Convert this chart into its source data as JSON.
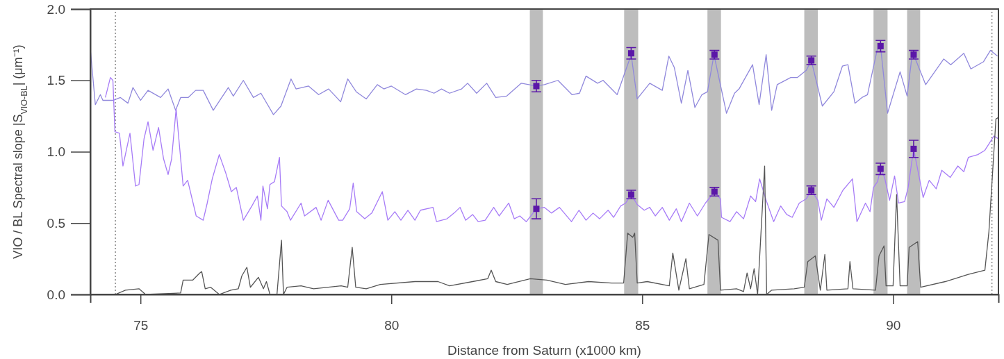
{
  "chart_data": {
    "type": "line",
    "xlabel": "Distance from Saturn (x1000 km)",
    "ylabel": "VIO / BL Spectral slope |S$_{VIO-BL}$| (μm⁻¹)",
    "xlim": [
      74,
      92.1
    ],
    "ylim": [
      0,
      2
    ],
    "xticks": [
      75,
      80,
      85,
      90
    ],
    "yticks": [
      {
        "value": 0,
        "label": "0.0"
      },
      {
        "value": 0.5,
        "label": "0.5"
      },
      {
        "value": 1,
        "label": "1.0"
      },
      {
        "value": 1.5,
        "label": "1.5"
      },
      {
        "value": 2,
        "label": "2.0"
      }
    ],
    "grid": false,
    "bands": [
      {
        "axis": "x",
        "from": 82.76,
        "to": 83.02,
        "color": "#bdbdbd"
      },
      {
        "axis": "x",
        "from": 84.64,
        "to": 84.92,
        "color": "#bdbdbd"
      },
      {
        "axis": "x",
        "from": 86.3,
        "to": 86.57,
        "color": "#bdbdbd"
      },
      {
        "axis": "x",
        "from": 88.23,
        "to": 88.5,
        "color": "#bdbdbd"
      },
      {
        "axis": "x",
        "from": 89.61,
        "to": 89.89,
        "color": "#bdbdbd"
      },
      {
        "axis": "x",
        "from": 90.28,
        "to": 90.54,
        "color": "#bdbdbd"
      }
    ],
    "ref_lines": [
      {
        "axis": "x",
        "value": 74.5,
        "color": "#888888",
        "line_style": "dotted"
      },
      {
        "axis": "x",
        "value": 91.97,
        "color": "#888888",
        "line_style": "dotted"
      }
    ],
    "series": [
      {
        "color": "#9088dc",
        "x": [
          74.0,
          74.1,
          74.2,
          74.25,
          74.45,
          74.6,
          74.75,
          74.85,
          75.0,
          75.15,
          75.4,
          75.55,
          75.7,
          75.8,
          75.95,
          76.1,
          76.25,
          76.45,
          76.75,
          76.85,
          77.05,
          77.25,
          77.4,
          77.65,
          77.8,
          78.0,
          78.1,
          78.35,
          78.55,
          78.75,
          78.99,
          79.13,
          79.3,
          79.5,
          79.72,
          79.85,
          80.0,
          80.28,
          80.5,
          80.7,
          80.85,
          81.0,
          81.16,
          81.4,
          81.52,
          81.7,
          81.9,
          82.08,
          82.3,
          82.59,
          82.89,
          83.05,
          83.32,
          83.6,
          83.75,
          83.88,
          84.11,
          84.22,
          84.5,
          84.78,
          84.9,
          85.15,
          85.4,
          85.53,
          85.64,
          85.78,
          85.91,
          86.05,
          86.19,
          86.3,
          86.43,
          86.68,
          86.84,
          86.93,
          87.2,
          87.33,
          87.47,
          87.58,
          87.69,
          87.96,
          88.09,
          88.27,
          88.37,
          88.59,
          88.82,
          88.99,
          89.1,
          89.24,
          89.38,
          89.49,
          89.68,
          89.75,
          89.89,
          90.14,
          90.28,
          90.37,
          90.41,
          90.65,
          91.01,
          91.15,
          91.41,
          91.55,
          91.8,
          91.94,
          92.08
        ],
        "values": [
          1.72,
          1.33,
          1.4,
          1.36,
          1.36,
          1.38,
          1.34,
          1.45,
          1.36,
          1.43,
          1.38,
          1.44,
          1.29,
          1.38,
          1.38,
          1.43,
          1.43,
          1.29,
          1.45,
          1.39,
          1.5,
          1.38,
          1.41,
          1.26,
          1.32,
          1.51,
          1.44,
          1.46,
          1.4,
          1.44,
          1.35,
          1.51,
          1.42,
          1.37,
          1.47,
          1.44,
          1.46,
          1.4,
          1.44,
          1.43,
          1.41,
          1.44,
          1.41,
          1.44,
          1.48,
          1.41,
          1.48,
          1.38,
          1.39,
          1.48,
          1.46,
          1.47,
          1.5,
          1.4,
          1.41,
          1.53,
          1.48,
          1.5,
          1.4,
          1.68,
          1.37,
          1.48,
          1.43,
          1.67,
          1.59,
          1.34,
          1.57,
          1.31,
          1.4,
          1.42,
          1.68,
          1.27,
          1.41,
          1.44,
          1.61,
          1.33,
          1.68,
          1.29,
          1.47,
          1.52,
          1.52,
          1.57,
          1.64,
          1.32,
          1.42,
          1.6,
          1.61,
          1.34,
          1.38,
          1.4,
          1.71,
          1.74,
          1.27,
          1.56,
          1.39,
          1.65,
          1.68,
          1.47,
          1.65,
          1.61,
          1.69,
          1.58,
          1.63,
          1.71,
          1.67
        ]
      },
      {
        "color": "#a77cf7",
        "x": [
          74.3,
          74.4,
          74.45,
          74.49,
          74.58,
          74.65,
          74.79,
          74.9,
          74.97,
          75.07,
          75.15,
          75.25,
          75.36,
          75.46,
          75.55,
          75.62,
          75.71,
          75.85,
          75.94,
          76.11,
          76.25,
          76.33,
          76.43,
          76.57,
          76.7,
          76.81,
          76.91,
          77.05,
          77.22,
          77.33,
          77.4,
          77.44,
          77.53,
          77.58,
          77.67,
          77.77,
          77.81,
          77.92,
          77.99,
          78.2,
          78.27,
          78.5,
          78.6,
          78.74,
          78.95,
          79.03,
          79.17,
          79.24,
          79.31,
          79.47,
          79.61,
          79.82,
          79.93,
          80.07,
          80.19,
          80.33,
          80.47,
          80.58,
          80.83,
          80.9,
          81.11,
          81.25,
          81.37,
          81.48,
          81.62,
          81.73,
          81.87,
          82.04,
          82.15,
          82.34,
          82.45,
          82.56,
          82.69,
          82.89,
          83.05,
          83.19,
          83.35,
          83.59,
          83.74,
          83.88,
          84.02,
          84.15,
          84.32,
          84.43,
          84.57,
          84.67,
          84.78,
          84.9,
          85.04,
          85.15,
          85.26,
          85.4,
          85.54,
          85.68,
          85.78,
          85.94,
          86.1,
          86.26,
          86.44,
          86.56,
          86.58,
          86.75,
          86.88,
          87.02,
          87.16,
          87.26,
          87.34,
          87.47,
          87.62,
          87.76,
          87.88,
          87.99,
          88.13,
          88.27,
          88.37,
          88.5,
          88.57,
          88.68,
          88.82,
          89.0,
          89.19,
          89.28,
          89.45,
          89.54,
          89.61,
          89.69,
          89.75,
          89.83,
          89.93,
          90.03,
          90.11,
          90.23,
          90.3,
          90.41,
          90.46,
          90.6,
          90.72,
          90.86,
          90.97,
          91.14,
          91.29,
          91.41,
          91.5,
          91.69,
          91.83,
          92.01,
          92.1
        ],
        "values": [
          1.38,
          1.52,
          1.5,
          1.14,
          1.13,
          0.9,
          1.13,
          0.76,
          0.77,
          1.09,
          1.21,
          1.01,
          1.17,
          0.95,
          0.84,
          0.95,
          1.3,
          0.76,
          0.8,
          0.55,
          0.52,
          0.64,
          0.81,
          0.98,
          0.85,
          0.72,
          0.75,
          0.52,
          0.62,
          0.69,
          0.52,
          0.76,
          0.6,
          0.77,
          0.79,
          0.96,
          0.62,
          0.58,
          0.52,
          0.64,
          0.55,
          0.61,
          0.52,
          0.66,
          0.52,
          0.52,
          0.6,
          0.78,
          0.58,
          0.53,
          0.57,
          0.72,
          0.52,
          0.58,
          0.52,
          0.59,
          0.52,
          0.59,
          0.61,
          0.51,
          0.53,
          0.57,
          0.61,
          0.52,
          0.56,
          0.51,
          0.52,
          0.61,
          0.55,
          0.64,
          0.53,
          0.55,
          0.51,
          0.6,
          0.61,
          0.57,
          0.61,
          0.51,
          0.59,
          0.52,
          0.57,
          0.53,
          0.59,
          0.54,
          0.62,
          0.64,
          0.7,
          0.63,
          0.59,
          0.61,
          0.55,
          0.61,
          0.52,
          0.6,
          0.51,
          0.64,
          0.55,
          0.64,
          0.72,
          0.67,
          0.54,
          0.51,
          0.58,
          0.53,
          0.69,
          0.65,
          0.81,
          0.66,
          0.51,
          0.62,
          0.56,
          0.54,
          0.64,
          0.67,
          0.73,
          0.66,
          0.52,
          0.67,
          0.61,
          0.73,
          0.81,
          0.51,
          0.64,
          0.58,
          0.75,
          0.79,
          0.88,
          0.82,
          0.66,
          0.83,
          0.64,
          0.65,
          0.75,
          1.02,
          0.93,
          0.68,
          0.8,
          0.74,
          0.87,
          0.82,
          0.9,
          0.86,
          0.96,
          0.98,
          1.01,
          1.11,
          1.09
        ]
      },
      {
        "color": "#555555",
        "x": [
          74.5,
          74.7,
          74.97,
          75.1,
          75.8,
          75.85,
          76.04,
          76.18,
          76.22,
          76.29,
          76.4,
          76.57,
          76.8,
          76.95,
          77.02,
          77.12,
          77.19,
          77.35,
          77.45,
          77.51,
          77.58,
          77.72,
          77.81,
          77.85,
          77.92,
          78.2,
          78.45,
          79.0,
          79.13,
          79.22,
          79.29,
          79.5,
          79.78,
          80.47,
          80.93,
          81.16,
          81.62,
          81.92,
          81.99,
          82.08,
          82.31,
          82.77,
          83.1,
          83.47,
          83.93,
          84.39,
          84.63,
          84.71,
          84.81,
          84.85,
          84.9,
          85.1,
          85.54,
          85.61,
          85.73,
          85.87,
          85.94,
          86.23,
          86.33,
          86.51,
          86.56,
          86.88,
          87.02,
          87.09,
          87.16,
          87.23,
          87.3,
          87.44,
          87.48,
          87.58,
          88.03,
          88.23,
          88.3,
          88.45,
          88.55,
          88.64,
          88.68,
          89.1,
          89.14,
          89.2,
          89.65,
          89.72,
          89.82,
          89.86,
          90.0,
          90.07,
          90.14,
          90.28,
          90.32,
          90.49,
          90.55,
          91.04,
          91.5,
          91.83,
          91.91,
          92.05,
          92.1
        ],
        "values": [
          0.0,
          0.03,
          0.04,
          0.0,
          0.01,
          0.1,
          0.1,
          0.15,
          0.16,
          0.04,
          0.05,
          0.0,
          0.03,
          0.04,
          0.13,
          0.19,
          0.05,
          0.12,
          0.04,
          0.09,
          0.0,
          0.0,
          0.38,
          0.0,
          0.05,
          0.06,
          0.04,
          0.06,
          0.05,
          0.33,
          0.05,
          0.04,
          0.07,
          0.09,
          0.09,
          0.06,
          0.09,
          0.11,
          0.17,
          0.09,
          0.07,
          0.11,
          0.1,
          0.07,
          0.09,
          0.08,
          0.08,
          0.43,
          0.4,
          0.43,
          0.08,
          0.09,
          0.06,
          0.29,
          0.03,
          0.25,
          0.04,
          0.07,
          0.42,
          0.38,
          0.03,
          0.04,
          0.02,
          0.15,
          0.04,
          0.18,
          0.0,
          0.9,
          0.0,
          0.03,
          0.04,
          0.05,
          0.23,
          0.27,
          0.03,
          0.28,
          0.03,
          0.04,
          0.23,
          0.04,
          0.03,
          0.27,
          0.34,
          0.06,
          0.06,
          0.7,
          0.06,
          0.06,
          0.33,
          0.37,
          0.05,
          0.09,
          0.14,
          0.17,
          0.44,
          1.23,
          1.24
        ]
      },
      {
        "type": "scatter",
        "color": "#5b17a8",
        "marker": "square",
        "x": [
          82.89,
          84.78,
          86.44,
          88.37,
          89.75,
          90.41
        ],
        "values": [
          1.46,
          1.69,
          1.68,
          1.64,
          1.74,
          1.68
        ],
        "errors": [
          0.04,
          0.04,
          0.03,
          0.03,
          0.04,
          0.03
        ]
      },
      {
        "type": "scatter",
        "color": "#5b17a8",
        "marker": "square",
        "x": [
          82.89,
          84.78,
          86.44,
          88.37,
          89.75,
          90.41
        ],
        "values": [
          0.6,
          0.7,
          0.72,
          0.73,
          0.88,
          1.02
        ],
        "errors": [
          0.07,
          0.03,
          0.03,
          0.03,
          0.04,
          0.06
        ]
      }
    ]
  }
}
